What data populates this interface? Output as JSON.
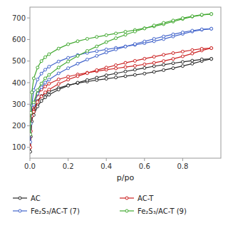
{
  "chart_data": {
    "type": "line",
    "xlabel": "p/po",
    "xlim": [
      0.0,
      1.0
    ],
    "ylim": [
      50,
      750
    ],
    "xticks": [
      {
        "value": 0.0,
        "label": "0.0"
      },
      0.2,
      0.4,
      0.6,
      0.8
    ],
    "yticks": [
      100,
      200,
      300,
      400,
      500,
      600,
      700
    ],
    "marker": "circle",
    "legend": "bottom",
    "grid": false,
    "series": [
      {
        "name": "AC",
        "color": "#2a2a2a",
        "x": [
          0.002,
          0.005,
          0.01,
          0.02,
          0.04,
          0.06,
          0.08,
          0.1,
          0.15,
          0.2,
          0.25,
          0.3,
          0.35,
          0.4,
          0.45,
          0.5,
          0.55,
          0.6,
          0.65,
          0.7,
          0.75,
          0.8,
          0.85,
          0.9,
          0.95
        ],
        "values": [
          80,
          150,
          220,
          275,
          315,
          338,
          348,
          358,
          375,
          388,
          398,
          405,
          412,
          418,
          424,
          430,
          436,
          442,
          450,
          458,
          467,
          477,
          488,
          500,
          510
        ]
      },
      {
        "color": "#2a2a2a",
        "x": [
          0.95,
          0.9,
          0.85,
          0.8,
          0.75,
          0.7,
          0.65,
          0.6,
          0.55,
          0.5,
          0.45,
          0.4,
          0.35,
          0.3,
          0.25,
          0.2,
          0.15,
          0.1,
          0.08,
          0.06,
          0.04,
          0.02
        ],
        "values": [
          510,
          508,
          502,
          496,
          490,
          483,
          476,
          468,
          460,
          452,
          443,
          434,
          423,
          412,
          400,
          386,
          368,
          344,
          332,
          315,
          290,
          250
        ]
      },
      {
        "name": "AC-T",
        "color": "#cc2222",
        "x": [
          0.002,
          0.005,
          0.01,
          0.02,
          0.04,
          0.06,
          0.08,
          0.1,
          0.15,
          0.2,
          0.25,
          0.3,
          0.35,
          0.4,
          0.45,
          0.5,
          0.55,
          0.6,
          0.65,
          0.7,
          0.75,
          0.8,
          0.85,
          0.9,
          0.95
        ],
        "values": [
          100,
          175,
          245,
          300,
          345,
          368,
          382,
          395,
          415,
          428,
          438,
          446,
          453,
          460,
          466,
          472,
          478,
          485,
          492,
          500,
          510,
          522,
          535,
          549,
          560
        ]
      },
      {
        "color": "#cc2222",
        "x": [
          0.95,
          0.9,
          0.85,
          0.8,
          0.75,
          0.7,
          0.65,
          0.6,
          0.55,
          0.5,
          0.45,
          0.4,
          0.35,
          0.3,
          0.25,
          0.2,
          0.15,
          0.1,
          0.08,
          0.06,
          0.04,
          0.02
        ],
        "values": [
          560,
          557,
          551,
          544,
          537,
          529,
          520,
          511,
          501,
          492,
          481,
          470,
          458,
          444,
          430,
          414,
          394,
          368,
          355,
          336,
          310,
          265
        ]
      },
      {
        "name": "Fe₂S₃/AC-T (7)",
        "color": "#4466cc",
        "x": [
          0.002,
          0.005,
          0.01,
          0.02,
          0.04,
          0.06,
          0.08,
          0.1,
          0.15,
          0.2,
          0.25,
          0.3,
          0.35,
          0.4,
          0.45,
          0.5,
          0.55,
          0.6,
          0.65,
          0.7,
          0.75,
          0.8,
          0.85,
          0.9,
          0.95
        ],
        "values": [
          125,
          210,
          295,
          365,
          415,
          442,
          460,
          474,
          498,
          515,
          528,
          538,
          546,
          554,
          561,
          568,
          575,
          583,
          592,
          602,
          614,
          626,
          637,
          645,
          650
        ]
      },
      {
        "color": "#4466cc",
        "x": [
          0.95,
          0.9,
          0.85,
          0.8,
          0.75,
          0.7,
          0.65,
          0.6,
          0.55,
          0.5,
          0.45,
          0.4,
          0.35,
          0.3,
          0.25,
          0.2,
          0.15,
          0.1,
          0.08,
          0.06,
          0.04,
          0.02
        ],
        "values": [
          650,
          647,
          641,
          633,
          624,
          614,
          603,
          591,
          579,
          567,
          554,
          540,
          524,
          507,
          488,
          467,
          443,
          414,
          400,
          378,
          350,
          298
        ]
      },
      {
        "name": "Fe₂S₃/AC-T (9)",
        "color": "#44aa33",
        "x": [
          0.002,
          0.005,
          0.01,
          0.02,
          0.04,
          0.06,
          0.08,
          0.1,
          0.15,
          0.2,
          0.25,
          0.3,
          0.35,
          0.4,
          0.45,
          0.5,
          0.55,
          0.6,
          0.65,
          0.7,
          0.75,
          0.8,
          0.85,
          0.9,
          0.95
        ],
        "values": [
          160,
          260,
          355,
          420,
          470,
          500,
          518,
          532,
          558,
          578,
          592,
          603,
          612,
          620,
          628,
          636,
          644,
          652,
          661,
          671,
          683,
          695,
          706,
          713,
          718
        ]
      },
      {
        "color": "#44aa33",
        "x": [
          0.95,
          0.9,
          0.85,
          0.8,
          0.75,
          0.7,
          0.65,
          0.6,
          0.55,
          0.5,
          0.45,
          0.4,
          0.35,
          0.3,
          0.25,
          0.2,
          0.15,
          0.1,
          0.08,
          0.06,
          0.04,
          0.02
        ],
        "values": [
          718,
          715,
          708,
          699,
          688,
          677,
          665,
          651,
          637,
          622,
          606,
          588,
          568,
          547,
          524,
          498,
          470,
          436,
          420,
          396,
          365,
          308
        ]
      }
    ]
  }
}
